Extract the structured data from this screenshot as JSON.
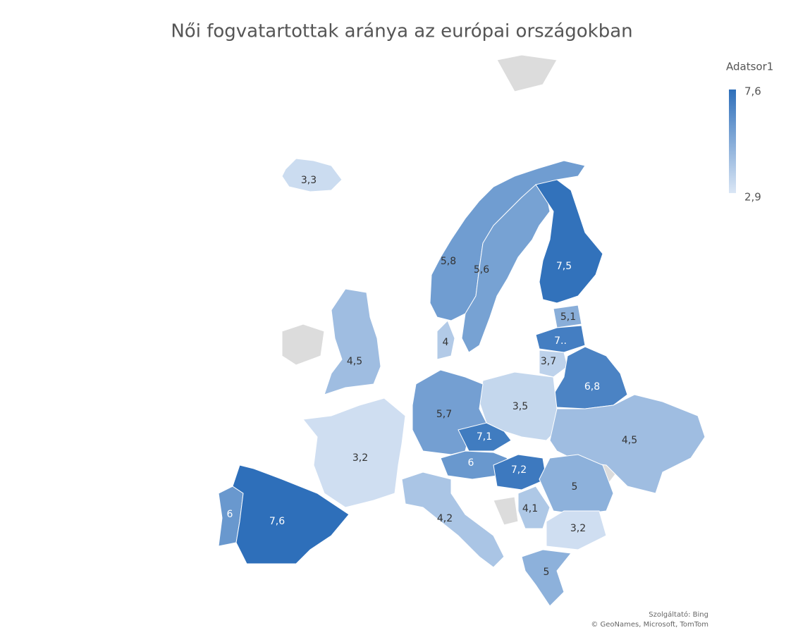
{
  "map": {
    "title": "Női fogvatartottak aránya az európai országokban",
    "legend": {
      "title": "Adatsor1",
      "max": {
        "value": 7.6,
        "label": "7,6"
      },
      "min": {
        "value": 2.9,
        "label": "2,9"
      },
      "max_color": "#2e6fba",
      "min_color": "#dae6f5"
    },
    "regions": [
      {
        "value": 3.3,
        "label": "3,3"
      },
      {
        "value": 5.8,
        "label": "5,8"
      },
      {
        "value": 5.6,
        "label": "5,6"
      },
      {
        "value": 7.5,
        "label": "7,5"
      },
      {
        "value": 5.1,
        "label": "5,1"
      },
      {
        "value": 7,
        "label": "7.."
      },
      {
        "value": 3.7,
        "label": "3,7"
      },
      {
        "value": 6.8,
        "label": "6,8"
      },
      {
        "value": 4,
        "label": "4"
      },
      {
        "value": 4.5,
        "label": "4,5"
      },
      {
        "value": 3.5,
        "label": "3,5"
      },
      {
        "value": 5.7,
        "label": "5,7"
      },
      {
        "value": 7.1,
        "label": "7,1"
      },
      {
        "value": 4.5,
        "label": "4,5"
      },
      {
        "value": 3.2,
        "label": "3,2"
      },
      {
        "value": 6,
        "label": "6"
      },
      {
        "value": 7.2,
        "label": "7,2"
      },
      {
        "value": 5,
        "label": "5"
      },
      {
        "value": 6,
        "label": "6"
      },
      {
        "value": 7.6,
        "label": "7,6"
      },
      {
        "value": 4.2,
        "label": "4,2"
      },
      {
        "value": 4.1,
        "label": "4,1"
      },
      {
        "value": 3.2,
        "label": "3,2"
      },
      {
        "value": 5,
        "label": "5"
      }
    ],
    "attribution": [
      "Szolgáltató: Bing",
      "© GeoNames, Microsoft, TomTom"
    ]
  }
}
